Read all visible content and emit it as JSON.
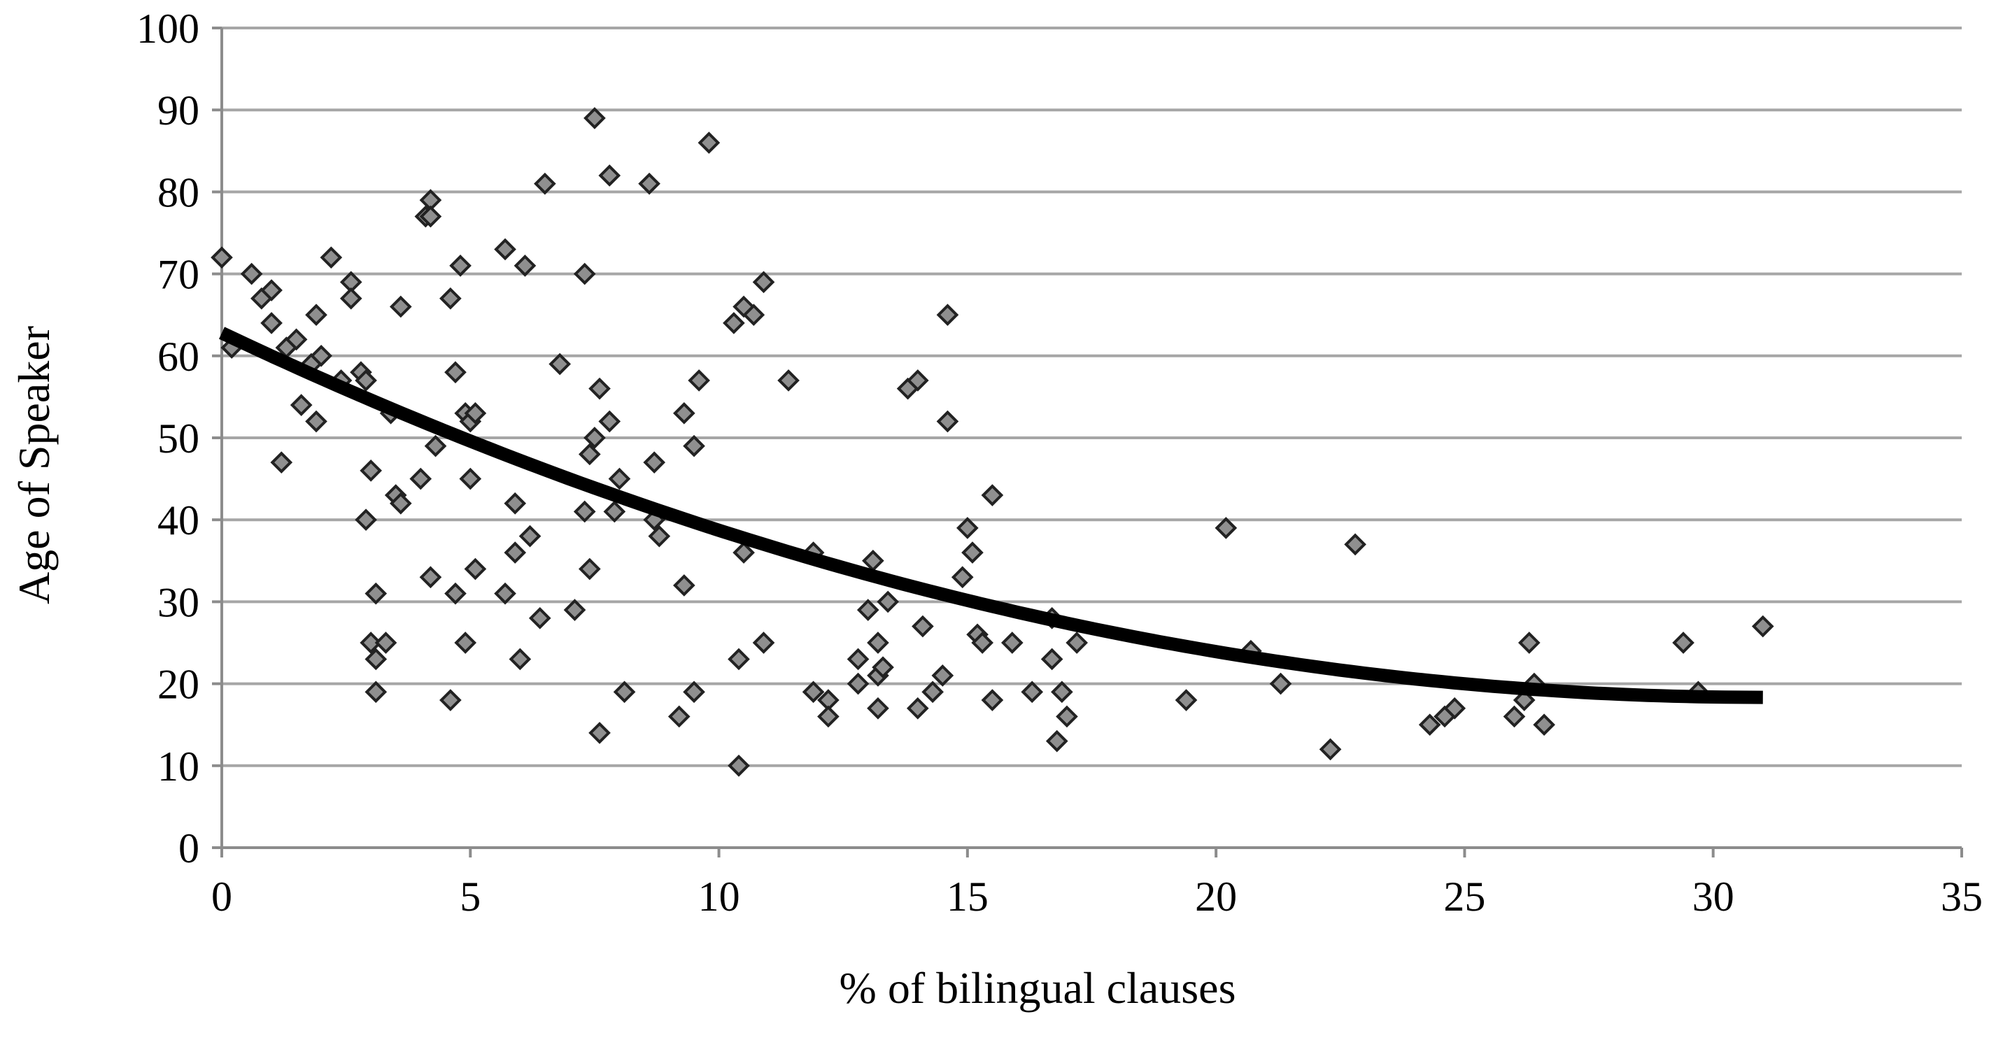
{
  "chart_data": {
    "type": "scatter",
    "title": "",
    "xlabel": "% of bilingual clauses",
    "ylabel": "Age of Speaker",
    "xlim": [
      0,
      35
    ],
    "ylim": [
      0,
      100
    ],
    "x_ticks": [
      0,
      5,
      10,
      15,
      20,
      25,
      30,
      35
    ],
    "y_ticks": [
      0,
      10,
      20,
      30,
      40,
      50,
      60,
      70,
      80,
      90,
      100
    ],
    "x_tick_labels": [
      "0",
      "5",
      "10",
      "15",
      "20",
      "25",
      "30",
      "35"
    ],
    "y_tick_labels": [
      "0",
      "10",
      "20",
      "30",
      "40",
      "50",
      "60",
      "70",
      "80",
      "90",
      "100"
    ],
    "grid": "horizontal",
    "legend": "none",
    "colors": {
      "marker_fill": "#8f8f8f",
      "marker_edge": "#222222",
      "trendline": "#000000",
      "gridline": "#a6a6a6"
    },
    "marker": "diamond",
    "series": [
      {
        "points": [
          [
            0,
            72
          ],
          [
            0.2,
            61
          ],
          [
            0.6,
            70
          ],
          [
            0.8,
            67
          ],
          [
            1,
            68
          ],
          [
            1,
            64
          ],
          [
            1.2,
            47
          ],
          [
            1.3,
            61
          ],
          [
            1.5,
            62
          ],
          [
            1.6,
            54
          ],
          [
            1.8,
            59
          ],
          [
            1.9,
            65
          ],
          [
            1.9,
            52
          ],
          [
            2,
            60
          ],
          [
            2.2,
            72
          ],
          [
            2.4,
            57
          ],
          [
            2.6,
            69
          ],
          [
            2.6,
            67
          ],
          [
            2.8,
            58
          ],
          [
            2.9,
            57
          ],
          [
            2.9,
            40
          ],
          [
            3,
            46
          ],
          [
            3,
            25
          ],
          [
            3.1,
            31
          ],
          [
            3.1,
            23
          ],
          [
            3.1,
            19
          ],
          [
            3.3,
            25
          ],
          [
            3.4,
            53
          ],
          [
            3.5,
            43
          ],
          [
            3.6,
            42
          ],
          [
            3.6,
            66
          ],
          [
            4,
            45
          ],
          [
            4.1,
            77
          ],
          [
            4.2,
            79
          ],
          [
            4.2,
            77
          ],
          [
            4.2,
            33
          ],
          [
            4.3,
            49
          ],
          [
            4.6,
            67
          ],
          [
            4.6,
            18
          ],
          [
            4.7,
            58
          ],
          [
            4.7,
            31
          ],
          [
            4.8,
            71
          ],
          [
            4.9,
            53
          ],
          [
            4.9,
            25
          ],
          [
            5,
            52
          ],
          [
            5,
            45
          ],
          [
            5.1,
            34
          ],
          [
            5.1,
            53
          ],
          [
            5.7,
            73
          ],
          [
            5.7,
            31
          ],
          [
            5.9,
            36
          ],
          [
            5.9,
            42
          ],
          [
            6,
            23
          ],
          [
            6.1,
            71
          ],
          [
            6.2,
            38
          ],
          [
            6.4,
            28
          ],
          [
            6.5,
            81
          ],
          [
            6.8,
            59
          ],
          [
            7.1,
            29
          ],
          [
            7.3,
            41
          ],
          [
            7.3,
            70
          ],
          [
            7.4,
            34
          ],
          [
            7.4,
            48
          ],
          [
            7.5,
            50
          ],
          [
            7.5,
            89
          ],
          [
            7.6,
            56
          ],
          [
            7.6,
            14
          ],
          [
            7.8,
            82
          ],
          [
            7.8,
            52
          ],
          [
            7.9,
            41
          ],
          [
            8,
            45
          ],
          [
            8.1,
            19
          ],
          [
            8.6,
            81
          ],
          [
            8.7,
            47
          ],
          [
            8.7,
            40
          ],
          [
            8.8,
            38
          ],
          [
            9.2,
            16
          ],
          [
            9.3,
            53
          ],
          [
            9.3,
            32
          ],
          [
            9.5,
            19
          ],
          [
            9.5,
            49
          ],
          [
            9.6,
            57
          ],
          [
            9.8,
            86
          ],
          [
            10.3,
            64
          ],
          [
            10.4,
            10
          ],
          [
            10.4,
            23
          ],
          [
            10.5,
            36
          ],
          [
            10.5,
            66
          ],
          [
            10.7,
            65
          ],
          [
            10.9,
            69
          ],
          [
            10.9,
            25
          ],
          [
            11.4,
            57
          ],
          [
            11.9,
            36
          ],
          [
            11.9,
            19
          ],
          [
            12.2,
            18
          ],
          [
            12.2,
            16
          ],
          [
            12.8,
            20
          ],
          [
            12.8,
            23
          ],
          [
            13,
            29
          ],
          [
            13.1,
            35
          ],
          [
            13.2,
            25
          ],
          [
            13.2,
            17
          ],
          [
            13.2,
            21
          ],
          [
            13.3,
            22
          ],
          [
            13.4,
            30
          ],
          [
            13.8,
            56
          ],
          [
            14,
            57
          ],
          [
            14,
            17
          ],
          [
            14.1,
            27
          ],
          [
            14.3,
            19
          ],
          [
            14.5,
            21
          ],
          [
            14.6,
            65
          ],
          [
            14.6,
            52
          ],
          [
            14.9,
            33
          ],
          [
            15,
            39
          ],
          [
            15.1,
            36
          ],
          [
            15.2,
            26
          ],
          [
            15.3,
            25
          ],
          [
            15.5,
            43
          ],
          [
            15.5,
            18
          ],
          [
            15.9,
            25
          ],
          [
            16.3,
            19
          ],
          [
            16.7,
            28
          ],
          [
            16.7,
            23
          ],
          [
            16.8,
            13
          ],
          [
            16.9,
            19
          ],
          [
            17,
            16
          ],
          [
            17.2,
            25
          ],
          [
            19.4,
            18
          ],
          [
            20.2,
            39
          ],
          [
            20.7,
            24
          ],
          [
            21.3,
            20
          ],
          [
            22.3,
            12
          ],
          [
            22.8,
            37
          ],
          [
            24.3,
            15
          ],
          [
            24.6,
            16
          ],
          [
            24.8,
            17
          ],
          [
            26,
            16
          ],
          [
            26.2,
            18
          ],
          [
            26.3,
            25
          ],
          [
            26.4,
            20
          ],
          [
            26.6,
            15
          ],
          [
            29.4,
            25
          ],
          [
            29.7,
            19
          ],
          [
            31,
            27
          ]
        ]
      }
    ],
    "trendline": {
      "type": "polynomial",
      "order": 2,
      "x_range": [
        0,
        31
      ],
      "coefficients": [
        0.04635,
        -2.8711,
        62.8
      ]
    }
  }
}
